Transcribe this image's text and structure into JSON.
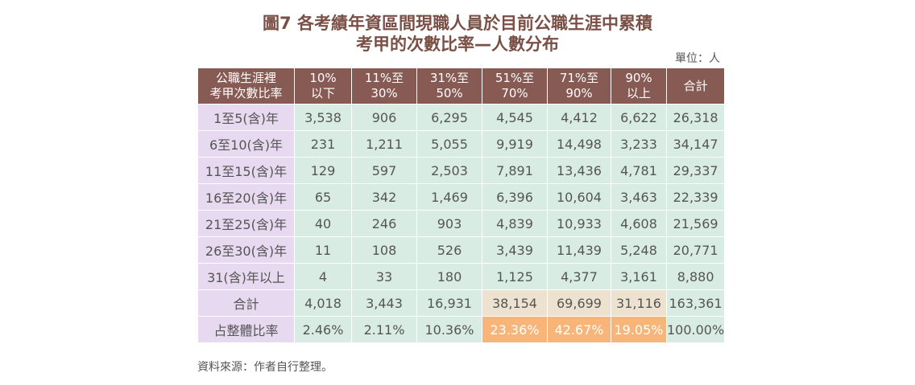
{
  "title": {
    "line1": "圖7 各考績年資區間現職人員於目前公職生涯中累積",
    "line2": "考甲的次數比率—人數分布"
  },
  "unit_note": "單位：人",
  "source_note": "資料來源：作者自行整理。",
  "colors": {
    "header_bg": "#875a54",
    "title_text": "#7a5046",
    "row_label_bg": "#e6d9f0",
    "cell_bg": "#d8ece4",
    "total_highlight_bg": "#ede2cf",
    "percent_highlight_bg": "#f7b57a"
  },
  "table": {
    "headers": [
      [
        "公職生涯裡",
        "考甲次數比率"
      ],
      [
        "10%",
        "以下"
      ],
      [
        "11%至",
        "30%"
      ],
      [
        "31%至",
        "50%"
      ],
      [
        "51%至",
        "70%"
      ],
      [
        "71%至",
        "90%"
      ],
      [
        "90%",
        "以上"
      ],
      [
        "合計"
      ]
    ],
    "rows": [
      {
        "label": "1至5(含)年",
        "cells": [
          "3,538",
          "906",
          "6,295",
          "4,545",
          "4,412",
          "6,622",
          "26,318"
        ]
      },
      {
        "label": "6至10(含)年",
        "cells": [
          "231",
          "1,211",
          "5,055",
          "9,919",
          "14,498",
          "3,233",
          "34,147"
        ]
      },
      {
        "label": "11至15(含)年",
        "cells": [
          "129",
          "597",
          "2,503",
          "7,891",
          "13,436",
          "4,781",
          "29,337"
        ]
      },
      {
        "label": "16至20(含)年",
        "cells": [
          "65",
          "342",
          "1,469",
          "6,396",
          "10,604",
          "3,463",
          "22,339"
        ]
      },
      {
        "label": "21至25(含)年",
        "cells": [
          "40",
          "246",
          "903",
          "4,839",
          "10,933",
          "4,608",
          "21,569"
        ]
      },
      {
        "label": "26至30(含)年",
        "cells": [
          "11",
          "108",
          "526",
          "3,439",
          "11,439",
          "5,248",
          "20,771"
        ]
      },
      {
        "label": "31(含)年以上",
        "cells": [
          "4",
          "33",
          "180",
          "1,125",
          "4,377",
          "3,161",
          "8,880"
        ]
      },
      {
        "label": "合計",
        "cells": [
          "4,018",
          "3,443",
          "16,931",
          "38,154",
          "69,699",
          "31,116",
          "163,361"
        ]
      },
      {
        "label": "占整體比率",
        "cells": [
          "2.46%",
          "2.11%",
          "10.36%",
          "23.36%",
          "42.67%",
          "19.05%",
          "100.00%"
        ]
      }
    ]
  },
  "chart_data": {
    "type": "table",
    "title": "圖7 各考績年資區間現職人員於目前公職生涯中累積考甲的次數比率—人數分布",
    "unit": "單位：人",
    "columns": [
      "10%以下",
      "11%至30%",
      "31%至50%",
      "51%至70%",
      "71%至90%",
      "90%以上",
      "合計"
    ],
    "rows": [
      "1至5(含)年",
      "6至10(含)年",
      "11至15(含)年",
      "16至20(含)年",
      "21至25(含)年",
      "26至30(含)年",
      "31(含)年以上",
      "合計",
      "占整體比率"
    ],
    "values": [
      [
        3538,
        906,
        6295,
        4545,
        4412,
        6622,
        26318
      ],
      [
        231,
        1211,
        5055,
        9919,
        14498,
        3233,
        34147
      ],
      [
        129,
        597,
        2503,
        7891,
        13436,
        4781,
        29337
      ],
      [
        65,
        342,
        1469,
        6396,
        10604,
        3463,
        22339
      ],
      [
        40,
        246,
        903,
        4839,
        10933,
        4608,
        21569
      ],
      [
        11,
        108,
        526,
        3439,
        11439,
        5248,
        20771
      ],
      [
        4,
        33,
        180,
        1125,
        4377,
        3161,
        8880
      ],
      [
        4018,
        3443,
        16931,
        38154,
        69699,
        31116,
        163361
      ],
      [
        2.46,
        2.11,
        10.36,
        23.36,
        42.67,
        19.05,
        100.0
      ]
    ],
    "highlighted_columns": [
      "51%至70%",
      "71%至90%",
      "90%以上"
    ]
  }
}
